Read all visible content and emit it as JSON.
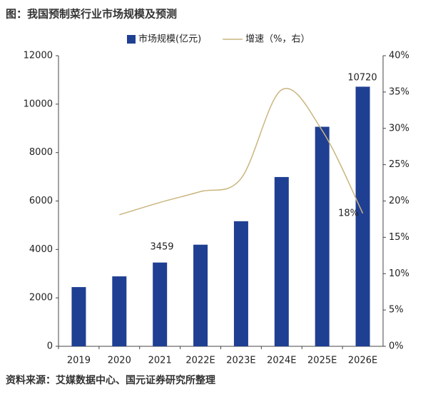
{
  "title": "图：我国预制菜行业市场规模及预测",
  "source": "资料来源：艾媒数据中心、国元证券研究所整理",
  "chart_data": {
    "type": "bar",
    "categories": [
      "2019",
      "2020",
      "2021",
      "2022E",
      "2023E",
      "2024E",
      "2025E",
      "2026E"
    ],
    "series": [
      {
        "name": "市场规模(亿元)",
        "type": "bar",
        "color": "#1f3f93",
        "values": [
          2445,
          2888,
          3459,
          4196,
          5165,
          6990,
          9065,
          10720
        ]
      },
      {
        "name": "增速（%，右）",
        "type": "line",
        "axis": "y2",
        "color": "#c9b57e",
        "values": [
          null,
          18.1,
          19.8,
          21.3,
          23.1,
          35.3,
          29.7,
          18.3
        ],
        "value_labels": [
          null,
          null,
          null,
          null,
          null,
          null,
          null,
          "18%"
        ]
      }
    ],
    "ylim": [
      0,
      12000
    ],
    "yticks": [
      0,
      2000,
      4000,
      6000,
      8000,
      10000,
      12000
    ],
    "y2lim": [
      0,
      40
    ],
    "y2ticks": [
      {
        "value": 0,
        "label": "0%"
      },
      {
        "value": 5,
        "label": "5%"
      },
      {
        "value": 10,
        "label": "10%"
      },
      {
        "value": 15,
        "label": "15%"
      },
      {
        "value": 20,
        "label": "20%"
      },
      {
        "value": 25,
        "label": "25%"
      },
      {
        "value": 30,
        "label": "30%"
      },
      {
        "value": 35,
        "label": "35%"
      },
      {
        "value": 40,
        "label": "40%"
      }
    ],
    "legend": "top"
  }
}
